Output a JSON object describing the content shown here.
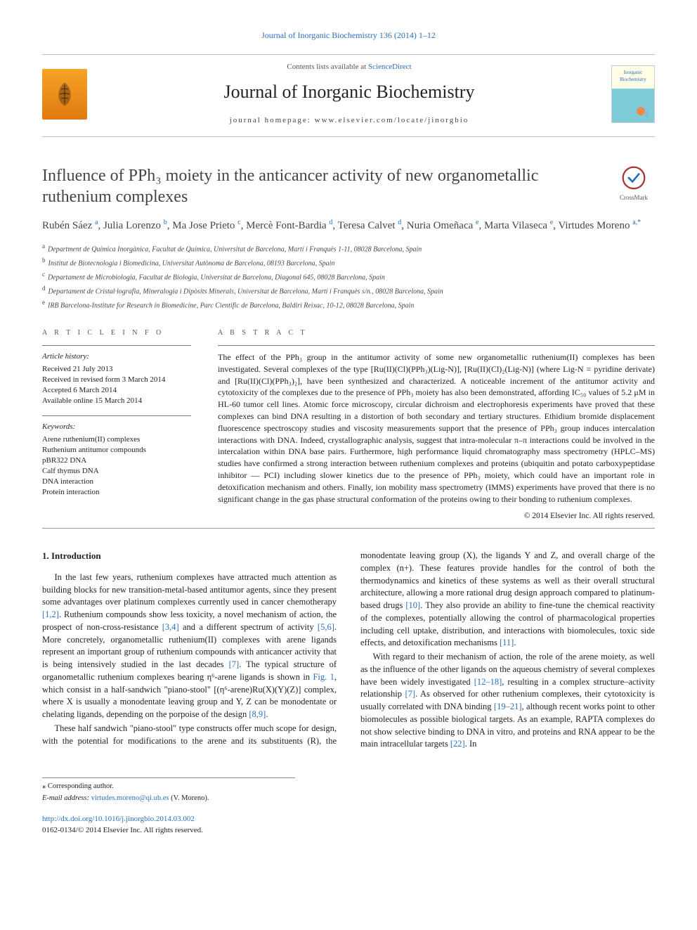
{
  "header": {
    "topLink": "Journal of Inorganic Biochemistry 136 (2014) 1–12",
    "contentsPrefix": "Contents lists available at ",
    "contentsLink": "ScienceDirect",
    "journal": "Journal of Inorganic Biochemistry",
    "homepagePrefix": "journal homepage: ",
    "homepageUrl": "www.elsevier.com/locate/jinorgbio",
    "coverLabel": "Inorganic Biochemistry",
    "crossmarkLabel": "CrossMark"
  },
  "article": {
    "title": "Influence of PPh₃ moiety in the anticancer activity of new organometallic ruthenium complexes",
    "authorsHtml": "Rubén Sáez <sup>a</sup>, Julia Lorenzo <sup>b</sup>, Ma Jose Prieto <sup>c</sup>, Mercè Font-Bardia <sup>d</sup>, Teresa Calvet <sup>d</sup>, Nuria Omeñaca <sup>e</sup>, Marta Vilaseca <sup>e</sup>, Virtudes Moreno <sup>a,*</sup>",
    "affiliations": [
      {
        "key": "a",
        "text": "Department de Química Inorgànica, Facultat de Química, Universitat de Barcelona, Martí i Franquès 1-11, 08028 Barcelona, Spain"
      },
      {
        "key": "b",
        "text": "Institut de Biotecnologia i Biomedicina, Universitat Autònoma de Barcelona, 08193 Barcelona, Spain"
      },
      {
        "key": "c",
        "text": "Departament de Microbiologia, Facultat de Biologia, Universitat de Barcelona, Diagonal 645, 08028 Barcelona, Spain"
      },
      {
        "key": "d",
        "text": "Departament de Cristal·lografia, Mineralogia i Dipòsits Minerals, Universitat de Barcelona, Martí i Franquès s/n., 08028 Barcelona, Spain"
      },
      {
        "key": "e",
        "text": "IRB Barcelona-Institute for Research in Biomedicine, Parc Científic de Barcelona, Baldiri Reixac, 10-12, 08028 Barcelona, Spain"
      }
    ]
  },
  "info": {
    "labelHead": "A R T I C L E   I N F O",
    "historyLabel": "Article history:",
    "history": [
      "Received 21 July 2013",
      "Received in revised form 3 March 2014",
      "Accepted 6 March 2014",
      "Available online 15 March 2014"
    ],
    "keywordsLabel": "Keywords:",
    "keywords": [
      "Arene ruthenium(II) complexes",
      "Ruthenium antitumor compounds",
      "pBR322 DNA",
      "Calf thymus DNA",
      "DNA interaction",
      "Protein interaction"
    ]
  },
  "abstract": {
    "head": "A B S T R A C T",
    "text": "The effect of the PPh₃ group in the antitumor activity of some new organometallic ruthenium(II) complexes has been investigated. Several complexes of the type [Ru(II)(Cl)(PPh₃)(Lig-N)], [Ru(II)(Cl)₂(Lig-N)] (where Lig-N = pyridine derivate) and [Ru(II)(Cl)(PPh₃)₂], have been synthesized and characterized. A noticeable increment of the antitumor activity and cytotoxicity of the complexes due to the presence of PPh₃ moiety has also been demonstrated, affording IC₅₀ values of 5.2 μM in HL-60 tumor cell lines. Atomic force microscopy, circular dichroism and electrophoresis experiments have proved that these complexes can bind DNA resulting in a distortion of both secondary and tertiary structures. Ethidium bromide displacement fluorescence spectroscopy studies and viscosity measurements support that the presence of PPh₃ group induces intercalation interactions with DNA. Indeed, crystallographic analysis, suggest that intra-molecular π–π interactions could be involved in the intercalation within DNA base pairs. Furthermore, high performance liquid chromatography mass spectrometry (HPLC–MS) studies have confirmed a strong interaction between ruthenium complexes and proteins (ubiquitin and potato carboxypeptidase inhibitor — PCI) including slower kinetics due to the presence of PPh₃ moiety, which could have an important role in detoxification mechanism and others. Finally, ion mobility mass spectrometry (IMMS) experiments have proved that there is no significant change in the gas phase structural conformation of the proteins owing to their bonding to ruthenium complexes.",
    "copyright": "© 2014 Elsevier Inc. All rights reserved."
  },
  "body": {
    "heading": "1. Introduction",
    "p1a": "In the last few years, ruthenium complexes have attracted much attention as building blocks for new transition-metal-based antitumor agents, since they present some advantages over platinum complexes currently used in cancer chemotherapy ",
    "ref1": "[1,2]",
    "p1b": ". Ruthenium compounds show less toxicity, a novel mechanism of action, the prospect of non-cross-resistance ",
    "ref2": "[3,4]",
    "p1c": " and a different spectrum of activity ",
    "ref3": "[5,6]",
    "p1d": ". More concretely, organometallic ruthenium(II) complexes with arene ligands represent an important group of ruthenium compounds with anticancer activity that is being intensively studied in the last decades ",
    "ref4": "[7]",
    "p1e": ". The typical structure of organometallic ruthenium complexes bearing η⁶-arene ligands is shown in ",
    "figref": "Fig. 1",
    "p1f": ", which consist in a half-sandwich \"piano-stool\" [(η⁶-arene)Ru(X)(Y)(Z)] complex, where X is usually a monodentate leaving group and Y, Z can be monodentate or chelating ligands, depending on the porpoise of the design ",
    "ref5": "[8,9]",
    "p1g": ".",
    "p2a": "These half sandwich \"piano-stool\" type constructs offer much scope for design, with the potential for modifications to the arene and its substituents (R), the monodentate leaving group (X), the ligands Y and Z, and overall charge of the complex (n+). These features provide handles for the control of both the thermodynamics and kinetics of these systems as well as their overall structural architecture, allowing a more rational drug design approach compared to platinum-based drugs ",
    "ref6": "[10]",
    "p2b": ". They also provide an ability to fine-tune the chemical reactivity of the complexes, potentially allowing the control of pharmacological properties including cell uptake, distribution, and interactions with biomolecules, toxic side effects, and detoxification mechanisms ",
    "ref7": "[11]",
    "p2c": ".",
    "p3a": "With regard to their mechanism of action, the role of the arene moiety, as well as the influence of the other ligands on the aqueous chemistry of several complexes have been widely investigated ",
    "ref8": "[12–18]",
    "p3b": ", resulting in a complex structure–activity relationship ",
    "ref9": "[7]",
    "p3c": ". As observed for other ruthenium complexes, their cytotoxicity is usually correlated with DNA binding ",
    "ref10": "[19–21]",
    "p3d": ", although recent works point to other biomolecules as possible biological targets. As an example, RAPTA complexes do not show selective binding to DNA in vitro, and proteins and RNA appear to be the main intracellular targets ",
    "ref11": "[22]",
    "p3e": ". In"
  },
  "footnote": {
    "corr": "⁎ Corresponding author.",
    "emailLabel": "E-mail address: ",
    "email": "virtudes.moreno@qi.ub.es",
    "emailSuffix": " (V. Moreno).",
    "doi": "http://dx.doi.org/10.1016/j.jinorgbio.2014.03.002",
    "issn": "0162-0134/© 2014 Elsevier Inc. All rights reserved."
  },
  "colors": {
    "link": "#2a6ebb",
    "text": "#222222",
    "rule": "#999999"
  }
}
